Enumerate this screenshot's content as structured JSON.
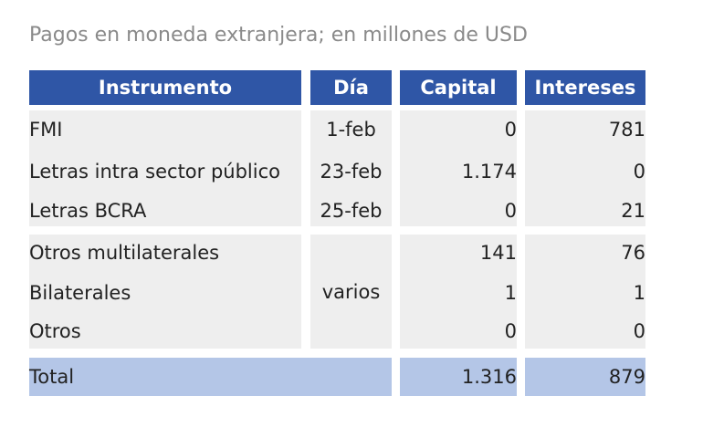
{
  "title": "Pagos en moneda extranjera; en millones de USD",
  "columns": [
    "Instrumento",
    "Día",
    "Capital",
    "Intereses"
  ],
  "group1": [
    {
      "instrumento": "FMI",
      "dia": "1-feb",
      "capital": "0",
      "intereses": "781"
    },
    {
      "instrumento": "Letras intra sector público",
      "dia": "23-feb",
      "capital": "1.174",
      "intereses": "0"
    },
    {
      "instrumento": "Letras BCRA",
      "dia": "25-feb",
      "capital": "0",
      "intereses": "21"
    }
  ],
  "group2": {
    "dia": "varios",
    "rows": [
      {
        "instrumento": "Otros multilaterales",
        "capital": "141",
        "intereses": "76"
      },
      {
        "instrumento": "Bilaterales",
        "capital": "1",
        "intereses": "1"
      },
      {
        "instrumento": "Otros",
        "capital": "0",
        "intereses": "0"
      }
    ]
  },
  "total": {
    "label": "Total",
    "capital": "1.316",
    "intereses": "879"
  },
  "colors": {
    "header": "#2f56a6",
    "body": "#eeeeee",
    "total": "#b4c6e7",
    "title": "#8a8a8a"
  }
}
